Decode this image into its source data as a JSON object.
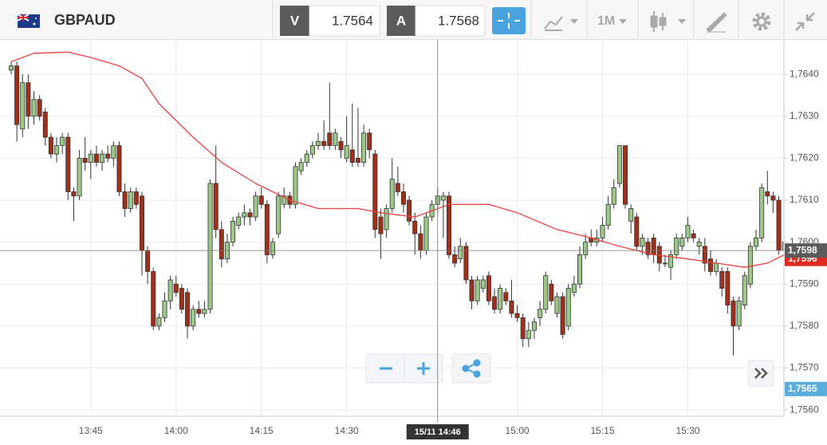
{
  "header": {
    "symbol": "GBPAUD",
    "bid_label": "V",
    "bid": "1.7564",
    "ask_label": "A",
    "ask": "1.7568",
    "timeframe": "1M"
  },
  "chart_data": {
    "type": "candlestick",
    "categories": [
      null,
      null,
      null,
      null,
      null,
      null,
      null,
      null,
      null,
      null,
      null,
      null,
      null,
      null,
      "13:45",
      null,
      null,
      null,
      null,
      null,
      null,
      null,
      null,
      null,
      null,
      null,
      null,
      null,
      null,
      "14:00",
      null,
      null,
      null,
      null,
      null,
      null,
      null,
      null,
      null,
      null,
      null,
      null,
      null,
      null,
      "14:15",
      null,
      null,
      null,
      null,
      null,
      null,
      null,
      null,
      null,
      null,
      null,
      null,
      null,
      null,
      "14:30",
      null,
      null,
      null,
      null,
      null,
      null,
      null,
      null,
      null,
      null,
      null,
      null,
      null,
      null,
      null,
      null,
      null,
      null,
      null,
      null,
      null,
      null,
      null,
      null,
      null,
      null,
      null,
      null,
      null,
      "15:00",
      null,
      null,
      null,
      null,
      null,
      null,
      null,
      null,
      null,
      null,
      null,
      null,
      null,
      null,
      "15:15",
      null,
      null,
      null,
      null,
      null,
      null,
      null,
      null,
      null,
      null,
      null,
      null,
      null,
      null,
      "15:30",
      null,
      null,
      null,
      null,
      null,
      null,
      null,
      null,
      null,
      null,
      null,
      null,
      null,
      null,
      null,
      null,
      null
    ],
    "ohlc": [
      [
        1.7641,
        1.7643,
        1.764,
        1.7642
      ],
      [
        1.7642,
        1.7643,
        1.7624,
        1.7628
      ],
      [
        1.7627,
        1.764,
        1.7625,
        1.7638
      ],
      [
        1.7638,
        1.764,
        1.7627,
        1.763
      ],
      [
        1.763,
        1.7636,
        1.7628,
        1.7634
      ],
      [
        1.7634,
        1.7635,
        1.7629,
        1.763
      ],
      [
        1.7631,
        1.7632,
        1.7623,
        1.7625
      ],
      [
        1.7625,
        1.7626,
        1.762,
        1.7621
      ],
      [
        1.7621,
        1.7625,
        1.7619,
        1.7623
      ],
      [
        1.7623,
        1.7626,
        1.7621,
        1.7625
      ],
      [
        1.7625,
        1.7626,
        1.761,
        1.7612
      ],
      [
        1.7612,
        1.7613,
        1.7605,
        1.7611
      ],
      [
        1.7611,
        1.7622,
        1.761,
        1.762
      ],
      [
        1.762,
        1.7625,
        1.7617,
        1.7619
      ],
      [
        1.7619,
        1.7622,
        1.7615,
        1.7621
      ],
      [
        1.7621,
        1.7623,
        1.7618,
        1.7619
      ],
      [
        1.7619,
        1.7622,
        1.7617,
        1.7621
      ],
      [
        1.7621,
        1.7623,
        1.7619,
        1.762
      ],
      [
        1.762,
        1.7624,
        1.7618,
        1.7623
      ],
      [
        1.7623,
        1.7624,
        1.7611,
        1.7612
      ],
      [
        1.7612,
        1.7614,
        1.7606,
        1.7608
      ],
      [
        1.7608,
        1.7613,
        1.7607,
        1.7612
      ],
      [
        1.7612,
        1.7613,
        1.7608,
        1.7609
      ],
      [
        1.7611,
        1.7612,
        1.7592,
        1.7598
      ],
      [
        1.7598,
        1.7599,
        1.759,
        1.7593
      ],
      [
        1.7593,
        1.7594,
        1.7579,
        1.758
      ],
      [
        1.758,
        1.7583,
        1.7579,
        1.7582
      ],
      [
        1.7582,
        1.7588,
        1.7581,
        1.7586
      ],
      [
        1.7586,
        1.7592,
        1.7584,
        1.7591
      ],
      [
        1.759,
        1.7592,
        1.7587,
        1.7588
      ],
      [
        1.7589,
        1.759,
        1.7583,
        1.7584
      ],
      [
        1.7588,
        1.7589,
        1.7577,
        1.758
      ],
      [
        1.758,
        1.7585,
        1.7579,
        1.7584
      ],
      [
        1.7584,
        1.7586,
        1.7582,
        1.7583
      ],
      [
        1.7583,
        1.7586,
        1.7582,
        1.7584
      ],
      [
        1.7584,
        1.7615,
        1.7583,
        1.7614
      ],
      [
        1.7614,
        1.7623,
        1.7601,
        1.7603
      ],
      [
        1.7603,
        1.7605,
        1.7594,
        1.7596
      ],
      [
        1.7596,
        1.7602,
        1.7595,
        1.76
      ],
      [
        1.76,
        1.7606,
        1.7599,
        1.7605
      ],
      [
        1.7604,
        1.7607,
        1.7603,
        1.7606
      ],
      [
        1.7606,
        1.7609,
        1.7604,
        1.7607
      ],
      [
        1.7607,
        1.7608,
        1.7604,
        1.7606
      ],
      [
        1.7606,
        1.7612,
        1.7605,
        1.7611
      ],
      [
        1.7611,
        1.7613,
        1.7608,
        1.7609
      ],
      [
        1.7609,
        1.761,
        1.7595,
        1.7597
      ],
      [
        1.7597,
        1.7601,
        1.7596,
        1.76
      ],
      [
        1.7602,
        1.7612,
        1.7601,
        1.7611
      ],
      [
        1.7609,
        1.7613,
        1.7608,
        1.7611
      ],
      [
        1.7611,
        1.7612,
        1.7608,
        1.7609
      ],
      [
        1.7609,
        1.7619,
        1.7608,
        1.7618
      ],
      [
        1.7617,
        1.762,
        1.7616,
        1.7619
      ],
      [
        1.7619,
        1.7622,
        1.7618,
        1.7621
      ],
      [
        1.7621,
        1.7624,
        1.762,
        1.7623
      ],
      [
        1.7623,
        1.7626,
        1.7622,
        1.7624
      ],
      [
        1.7624,
        1.7629,
        1.7622,
        1.7623
      ],
      [
        1.7626,
        1.7638,
        1.7622,
        1.7623
      ],
      [
        1.7623,
        1.7627,
        1.7622,
        1.7626
      ],
      [
        1.7624,
        1.7625,
        1.762,
        1.7622
      ],
      [
        1.762,
        1.763,
        1.7619,
        1.7623
      ],
      [
        1.7622,
        1.7633,
        1.7618,
        1.7619
      ],
      [
        1.762,
        1.7632,
        1.7618,
        1.7619
      ],
      [
        1.7619,
        1.7628,
        1.7618,
        1.7626
      ],
      [
        1.7626,
        1.7627,
        1.762,
        1.7622
      ],
      [
        1.7621,
        1.7622,
        1.7601,
        1.7603
      ],
      [
        1.7606,
        1.7608,
        1.7596,
        1.7602
      ],
      [
        1.7603,
        1.7609,
        1.7601,
        1.7608
      ],
      [
        1.7608,
        1.762,
        1.7607,
        1.7615
      ],
      [
        1.7614,
        1.7618,
        1.7611,
        1.7612
      ],
      [
        1.7612,
        1.7614,
        1.7607,
        1.7609
      ],
      [
        1.761,
        1.7611,
        1.7604,
        1.7605
      ],
      [
        1.7605,
        1.7607,
        1.7597,
        1.7602
      ],
      [
        1.7602,
        1.7604,
        1.7596,
        1.7598
      ],
      [
        1.7598,
        1.7607,
        1.7597,
        1.7606
      ],
      [
        1.7606,
        1.761,
        1.7605,
        1.7609
      ],
      [
        1.7609,
        1.7613,
        1.7607,
        1.7611
      ],
      [
        1.761,
        1.7612,
        1.7601,
        1.7611
      ],
      [
        1.7611,
        1.7612,
        1.7596,
        1.7597
      ],
      [
        1.7597,
        1.7599,
        1.7594,
        1.7595
      ],
      [
        1.7596,
        1.7601,
        1.7595,
        1.7599
      ],
      [
        1.7599,
        1.76,
        1.759,
        1.7591
      ],
      [
        1.7591,
        1.7592,
        1.7584,
        1.7586
      ],
      [
        1.7586,
        1.7592,
        1.7585,
        1.7591
      ],
      [
        1.7589,
        1.7592,
        1.7588,
        1.7591
      ],
      [
        1.7592,
        1.7593,
        1.7585,
        1.7586
      ],
      [
        1.7587,
        1.7589,
        1.7583,
        1.7584
      ],
      [
        1.7584,
        1.759,
        1.7583,
        1.7589
      ],
      [
        1.7588,
        1.7589,
        1.7585,
        1.7586
      ],
      [
        1.7586,
        1.7591,
        1.7582,
        1.7583
      ],
      [
        1.7583,
        1.7585,
        1.7581,
        1.7582
      ],
      [
        1.7582,
        1.7583,
        1.7575,
        1.7577
      ],
      [
        1.7577,
        1.7581,
        1.7575,
        1.7579
      ],
      [
        1.7579,
        1.7582,
        1.7577,
        1.7581
      ],
      [
        1.7582,
        1.7586,
        1.758,
        1.7584
      ],
      [
        1.7584,
        1.7593,
        1.7583,
        1.7592
      ],
      [
        1.759,
        1.7591,
        1.7585,
        1.7586
      ],
      [
        1.7583,
        1.7588,
        1.7582,
        1.7587
      ],
      [
        1.7587,
        1.7588,
        1.7577,
        1.7578
      ],
      [
        1.758,
        1.759,
        1.7579,
        1.7589
      ],
      [
        1.7588,
        1.7592,
        1.7587,
        1.759
      ],
      [
        1.759,
        1.7599,
        1.7589,
        1.7597
      ],
      [
        1.7597,
        1.7602,
        1.7596,
        1.76
      ],
      [
        1.7601,
        1.7603,
        1.7599,
        1.76
      ],
      [
        1.76,
        1.7603,
        1.7599,
        1.7601
      ],
      [
        1.7601,
        1.7606,
        1.76,
        1.7604
      ],
      [
        1.7604,
        1.7611,
        1.7603,
        1.7609
      ],
      [
        1.7609,
        1.7615,
        1.7608,
        1.7613
      ],
      [
        1.7614,
        1.7623,
        1.7613,
        1.7623
      ],
      [
        1.7623,
        1.7623,
        1.7608,
        1.7609
      ],
      [
        1.7605,
        1.7609,
        1.7602,
        1.7608
      ],
      [
        1.7606,
        1.7607,
        1.7598,
        1.7599
      ],
      [
        1.7599,
        1.7602,
        1.7597,
        1.7601
      ],
      [
        1.76,
        1.7601,
        1.7596,
        1.7597
      ],
      [
        1.7601,
        1.7602,
        1.7595,
        1.7597
      ],
      [
        1.7599,
        1.76,
        1.7593,
        1.7595
      ],
      [
        1.7595,
        1.7597,
        1.7594,
        1.7595
      ],
      [
        1.7594,
        1.7598,
        1.7591,
        1.7597
      ],
      [
        1.7597,
        1.7602,
        1.7596,
        1.7601
      ],
      [
        1.7599,
        1.7602,
        1.7598,
        1.7601
      ],
      [
        1.7601,
        1.7606,
        1.76,
        1.7604
      ],
      [
        1.7602,
        1.7603,
        1.76,
        1.7601
      ],
      [
        1.7599,
        1.7601,
        1.7597,
        1.76
      ],
      [
        1.7599,
        1.7601,
        1.7593,
        1.7595
      ],
      [
        1.7596,
        1.7598,
        1.7592,
        1.7593
      ],
      [
        1.7593,
        1.7596,
        1.7592,
        1.7595
      ],
      [
        1.7593,
        1.7594,
        1.7587,
        1.7589
      ],
      [
        1.7593,
        1.7594,
        1.7583,
        1.7585
      ],
      [
        1.7586,
        1.7587,
        1.7573,
        1.758
      ],
      [
        1.758,
        1.7587,
        1.7579,
        1.7586
      ],
      [
        1.7585,
        1.7593,
        1.7584,
        1.7592
      ],
      [
        1.759,
        1.76,
        1.7589,
        1.7599
      ],
      [
        1.7599,
        1.7603,
        1.7598,
        1.7601
      ],
      [
        1.7601,
        1.7614,
        1.76,
        1.7613
      ],
      [
        1.7612,
        1.7617,
        1.7609,
        1.7611
      ],
      [
        1.7611,
        1.7612,
        1.7607,
        1.761
      ],
      [
        1.761,
        1.7611,
        1.7597,
        1.7598
      ],
      [
        1.7598,
        1.7602,
        1.7597,
        1.76
      ]
    ],
    "up_color": "#9cc98a",
    "down_color": "#a0301a",
    "ma": {
      "color": "#e8423f",
      "x": [
        0,
        4,
        10,
        14,
        19,
        23,
        26,
        32,
        37,
        43,
        49,
        54,
        61,
        65,
        71,
        77,
        84,
        89,
        96,
        102,
        107,
        113,
        119,
        124,
        129,
        133,
        136
      ],
      "values": [
        1.7643,
        1.7645,
        1.76453,
        1.7644,
        1.7642,
        1.7639,
        1.7633,
        1.7625,
        1.7619,
        1.7614,
        1.761,
        1.7608,
        1.7608,
        1.7607,
        1.7606,
        1.7609,
        1.7609,
        1.7607,
        1.7603,
        1.7601,
        1.7599,
        1.7597,
        1.7596,
        1.7595,
        1.7594,
        1.7595,
        1.7597
      ]
    },
    "ylim": [
      1.75585,
      1.76482
    ],
    "yticks": [
      {
        "value": 1.756,
        "label": "1,7560"
      },
      {
        "value": 1.757,
        "label": "1,7570"
      },
      {
        "value": 1.758,
        "label": "1,7580"
      },
      {
        "value": 1.759,
        "label": "1,7590"
      },
      {
        "value": 1.76,
        "label": "1,7600"
      },
      {
        "value": 1.761,
        "label": "1,7610"
      },
      {
        "value": 1.762,
        "label": "1,7620"
      },
      {
        "value": 1.763,
        "label": "1,7630"
      },
      {
        "value": 1.764,
        "label": "1,7640"
      }
    ],
    "grid": true,
    "crosshair": {
      "value": 1.7598,
      "label": "1,7598",
      "time_label": "15/11 14:46"
    },
    "last_price": {
      "value": 1.7596,
      "label": "1,7596"
    },
    "alert_price": {
      "value": 1.7565,
      "label": "1,7565"
    }
  }
}
